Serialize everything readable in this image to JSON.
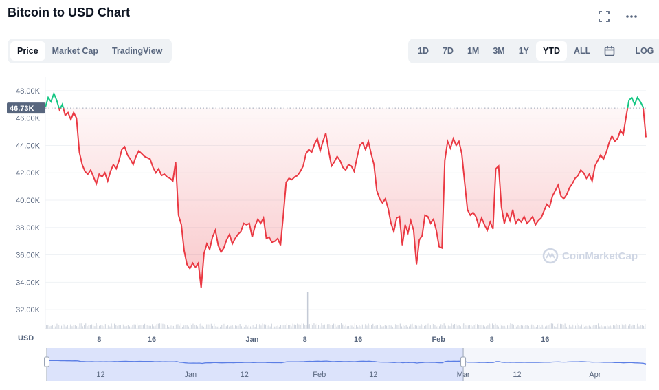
{
  "header": {
    "title": "Bitcoin to USD Chart",
    "fullscreen_icon": "fullscreen-icon",
    "more_icon": "more-horizontal-icon"
  },
  "view_tabs": [
    {
      "label": "Price",
      "active": true
    },
    {
      "label": "Market Cap",
      "active": false
    },
    {
      "label": "TradingView",
      "active": false
    }
  ],
  "range_tabs": [
    {
      "label": "1D",
      "active": false
    },
    {
      "label": "7D",
      "active": false
    },
    {
      "label": "1M",
      "active": false
    },
    {
      "label": "3M",
      "active": false
    },
    {
      "label": "1Y",
      "active": false
    },
    {
      "label": "YTD",
      "active": true
    },
    {
      "label": "ALL",
      "active": false
    }
  ],
  "calendar_icon": "calendar-icon",
  "log_label": "LOG",
  "watermark": "CoinMarketCap",
  "chart_data": {
    "type": "area",
    "title": "Bitcoin to USD Chart",
    "ylabel": "USD",
    "ylim": [
      31000,
      49000
    ],
    "yticks": [
      32000,
      34000,
      36000,
      38000,
      40000,
      42000,
      44000,
      46000,
      48000
    ],
    "ytick_labels": [
      "32.00K",
      "34.00K",
      "36.00K",
      "38.00K",
      "40.00K",
      "42.00K",
      "44.00K",
      "46.00K",
      "48.00K"
    ],
    "reference_value": 46730,
    "reference_label": "46.73K",
    "colors": {
      "above": "#16c784",
      "below": "#ea3943",
      "grid": "#eff2f5"
    },
    "xlim": [
      0,
      105
    ],
    "xticks": [
      {
        "x": 9.5,
        "label": "8"
      },
      {
        "x": 18.8,
        "label": "16"
      },
      {
        "x": 36.5,
        "label": "Jan"
      },
      {
        "x": 45.8,
        "label": "8"
      },
      {
        "x": 55.2,
        "label": "16"
      },
      {
        "x": 69.4,
        "label": "Feb"
      },
      {
        "x": 78.8,
        "label": "8"
      },
      {
        "x": 88.2,
        "label": "16"
      }
    ],
    "points": [
      [
        0,
        46800
      ],
      [
        0.5,
        47500
      ],
      [
        1,
        47200
      ],
      [
        1.5,
        47800
      ],
      [
        2,
        47300
      ],
      [
        2.5,
        46600
      ],
      [
        3,
        47000
      ],
      [
        3.5,
        46200
      ],
      [
        4,
        46400
      ],
      [
        4.5,
        45900
      ],
      [
        5,
        46400
      ],
      [
        5.5,
        46000
      ],
      [
        6,
        43500
      ],
      [
        6.5,
        42600
      ],
      [
        7,
        42100
      ],
      [
        7.5,
        41900
      ],
      [
        8,
        42200
      ],
      [
        8.5,
        41700
      ],
      [
        9,
        41200
      ],
      [
        9.5,
        41900
      ],
      [
        10,
        41700
      ],
      [
        10.5,
        42000
      ],
      [
        11,
        41400
      ],
      [
        11.5,
        42100
      ],
      [
        12,
        42600
      ],
      [
        12.5,
        42300
      ],
      [
        13,
        42900
      ],
      [
        13.5,
        43700
      ],
      [
        14,
        43900
      ],
      [
        14.5,
        43300
      ],
      [
        15,
        43000
      ],
      [
        15.5,
        42600
      ],
      [
        16,
        43200
      ],
      [
        16.5,
        43600
      ],
      [
        17,
        43400
      ],
      [
        17.5,
        43200
      ],
      [
        18,
        43100
      ],
      [
        18.5,
        43000
      ],
      [
        19,
        42400
      ],
      [
        19.5,
        42000
      ],
      [
        20,
        42300
      ],
      [
        20.5,
        41800
      ],
      [
        21,
        41900
      ],
      [
        21.5,
        41700
      ],
      [
        22,
        41600
      ],
      [
        22.5,
        41400
      ],
      [
        23,
        42800
      ],
      [
        23.5,
        38900
      ],
      [
        24,
        38200
      ],
      [
        24.5,
        36300
      ],
      [
        25,
        35300
      ],
      [
        25.5,
        35000
      ],
      [
        26,
        35400
      ],
      [
        26.5,
        35100
      ],
      [
        27,
        35400
      ],
      [
        27.5,
        33600
      ],
      [
        28,
        36100
      ],
      [
        28.5,
        36800
      ],
      [
        29,
        36400
      ],
      [
        29.5,
        37300
      ],
      [
        30,
        37800
      ],
      [
        30.5,
        36700
      ],
      [
        31,
        36200
      ],
      [
        31.5,
        36500
      ],
      [
        32,
        37100
      ],
      [
        32.5,
        37500
      ],
      [
        33,
        36800
      ],
      [
        33.5,
        37200
      ],
      [
        34,
        37500
      ],
      [
        34.5,
        37700
      ],
      [
        35,
        38300
      ],
      [
        35.5,
        38200
      ],
      [
        36,
        38300
      ],
      [
        36.5,
        37300
      ],
      [
        37,
        38100
      ],
      [
        37.5,
        38600
      ],
      [
        38,
        38300
      ],
      [
        38.5,
        38700
      ],
      [
        39,
        37200
      ],
      [
        39.5,
        37300
      ],
      [
        40,
        36900
      ],
      [
        40.5,
        37000
      ],
      [
        41,
        37200
      ],
      [
        41.5,
        36700
      ],
      [
        42,
        38900
      ],
      [
        42.5,
        41300
      ],
      [
        43,
        41600
      ],
      [
        43.5,
        41500
      ],
      [
        44,
        41700
      ],
      [
        44.5,
        41800
      ],
      [
        45,
        42100
      ],
      [
        45.5,
        42500
      ],
      [
        46,
        43400
      ],
      [
        46.5,
        43700
      ],
      [
        47,
        43500
      ],
      [
        47.5,
        44100
      ],
      [
        48,
        44500
      ],
      [
        48.5,
        43600
      ],
      [
        49,
        44300
      ],
      [
        49.5,
        44900
      ],
      [
        50,
        43600
      ],
      [
        50.5,
        42500
      ],
      [
        51,
        42800
      ],
      [
        51.5,
        43200
      ],
      [
        52,
        42900
      ],
      [
        52.5,
        42400
      ],
      [
        53,
        42200
      ],
      [
        53.5,
        42600
      ],
      [
        54,
        42500
      ],
      [
        54.5,
        42100
      ],
      [
        55,
        43100
      ],
      [
        55.5,
        44000
      ],
      [
        56,
        44200
      ],
      [
        56.5,
        43700
      ],
      [
        57,
        44300
      ],
      [
        57.5,
        43400
      ],
      [
        58,
        42600
      ],
      [
        58.5,
        40700
      ],
      [
        59,
        40100
      ],
      [
        59.5,
        39800
      ],
      [
        60,
        40100
      ],
      [
        60.5,
        39400
      ],
      [
        61,
        38300
      ],
      [
        61.5,
        37700
      ],
      [
        62,
        38700
      ],
      [
        62.5,
        38800
      ],
      [
        63,
        36700
      ],
      [
        63.5,
        38200
      ],
      [
        64,
        37600
      ],
      [
        64.5,
        38500
      ],
      [
        65,
        37800
      ],
      [
        65.5,
        35300
      ],
      [
        66,
        37100
      ],
      [
        66.5,
        37400
      ],
      [
        67,
        38900
      ],
      [
        67.5,
        38800
      ],
      [
        68,
        38300
      ],
      [
        68.5,
        38600
      ],
      [
        69,
        37800
      ],
      [
        69.5,
        36600
      ],
      [
        70,
        36500
      ],
      [
        70.5,
        42900
      ],
      [
        71,
        44300
      ],
      [
        71.5,
        43800
      ],
      [
        72,
        44500
      ],
      [
        72.5,
        44000
      ],
      [
        73,
        44300
      ],
      [
        73.5,
        43400
      ],
      [
        74,
        41300
      ],
      [
        74.5,
        39300
      ],
      [
        75,
        38900
      ],
      [
        75.5,
        39100
      ],
      [
        76,
        38800
      ],
      [
        76.5,
        38100
      ],
      [
        77,
        38700
      ],
      [
        77.5,
        38200
      ],
      [
        78,
        37800
      ],
      [
        78.5,
        38400
      ],
      [
        79,
        37900
      ],
      [
        79.5,
        42300
      ],
      [
        80,
        42500
      ],
      [
        80.5,
        39500
      ],
      [
        81,
        38300
      ],
      [
        81.5,
        39000
      ],
      [
        82,
        38500
      ],
      [
        82.5,
        39300
      ],
      [
        83,
        38300
      ],
      [
        83.5,
        38600
      ],
      [
        84,
        38400
      ],
      [
        84.5,
        38800
      ],
      [
        85,
        38300
      ],
      [
        85.5,
        38500
      ],
      [
        86,
        38800
      ],
      [
        86.5,
        38200
      ],
      [
        87,
        38500
      ],
      [
        87.5,
        38700
      ],
      [
        88,
        39200
      ],
      [
        88.5,
        39700
      ],
      [
        89,
        39500
      ],
      [
        89.5,
        40300
      ],
      [
        90,
        40700
      ],
      [
        90.5,
        41100
      ],
      [
        91,
        40300
      ],
      [
        91.5,
        40100
      ],
      [
        92,
        40400
      ],
      [
        92.5,
        40900
      ],
      [
        93,
        41200
      ],
      [
        93.5,
        41600
      ],
      [
        94,
        41800
      ],
      [
        94.5,
        42200
      ],
      [
        95,
        42000
      ],
      [
        95.5,
        41600
      ],
      [
        96,
        41900
      ],
      [
        96.5,
        41400
      ],
      [
        97,
        42500
      ],
      [
        97.5,
        42900
      ],
      [
        98,
        43300
      ],
      [
        98.5,
        43000
      ],
      [
        99,
        43500
      ],
      [
        99.5,
        44200
      ],
      [
        100,
        44700
      ],
      [
        100.5,
        44300
      ],
      [
        101,
        44500
      ],
      [
        101.5,
        45100
      ],
      [
        102,
        44800
      ],
      [
        102.5,
        46100
      ],
      [
        103,
        47300
      ],
      [
        103.5,
        47500
      ],
      [
        104,
        47000
      ],
      [
        104.5,
        47500
      ],
      [
        105,
        47200
      ],
      [
        105.5,
        46800
      ],
      [
        106,
        44600
      ]
    ],
    "volume_peak_x": 46.2
  },
  "navigator": {
    "labels": [
      {
        "x": 0.09,
        "label": "12"
      },
      {
        "x": 0.24,
        "label": "Jan"
      },
      {
        "x": 0.33,
        "label": "12"
      },
      {
        "x": 0.455,
        "label": "Feb"
      },
      {
        "x": 0.545,
        "label": "12"
      },
      {
        "x": 0.695,
        "label": "Mar"
      },
      {
        "x": 0.785,
        "label": "12"
      },
      {
        "x": 0.915,
        "label": "Apr"
      }
    ],
    "selection": [
      0.0,
      0.695
    ]
  }
}
